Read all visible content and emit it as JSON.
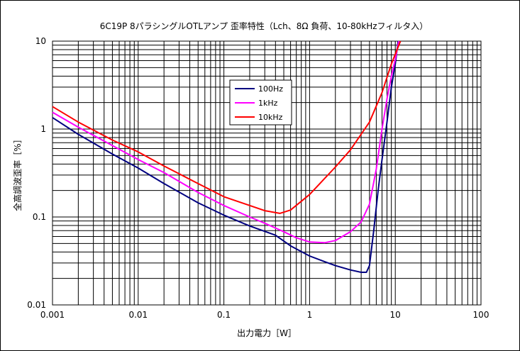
{
  "chart_data": {
    "type": "line",
    "title": "6C19P 8パラシングルOTLアンプ 歪率特性（Lch、8Ω 負荷、10-80kHzフィルタ入）",
    "xlabel": "出力電力［W］",
    "ylabel": "全高調波歪率［%］",
    "x_scale": "log",
    "y_scale": "log",
    "xlim": [
      0.001,
      100
    ],
    "ylim": [
      0.01,
      10
    ],
    "grid": true,
    "legend_position": "upper-middle",
    "x_tick_labels": [
      "0.001",
      "0.01",
      "0.1",
      "1",
      "10",
      "100"
    ],
    "y_tick_labels": [
      "10",
      "1",
      "0.1",
      "0.01"
    ],
    "series": [
      {
        "name": "100Hz",
        "color": "#000080",
        "points": [
          [
            0.001,
            1.35
          ],
          [
            0.002,
            0.87
          ],
          [
            0.005,
            0.52
          ],
          [
            0.01,
            0.36
          ],
          [
            0.02,
            0.24
          ],
          [
            0.05,
            0.145
          ],
          [
            0.1,
            0.105
          ],
          [
            0.2,
            0.079
          ],
          [
            0.4,
            0.062
          ],
          [
            0.6,
            0.047
          ],
          [
            1.0,
            0.036
          ],
          [
            1.5,
            0.031
          ],
          [
            2.0,
            0.028
          ],
          [
            3.0,
            0.025
          ],
          [
            4.0,
            0.0235
          ],
          [
            4.6,
            0.0235
          ],
          [
            5.0,
            0.028
          ],
          [
            5.6,
            0.07
          ],
          [
            6.3,
            0.2
          ],
          [
            7.0,
            0.45
          ],
          [
            8.0,
            1.2
          ],
          [
            9.0,
            3.0
          ],
          [
            10.0,
            5.5
          ],
          [
            10.8,
            10.0
          ]
        ]
      },
      {
        "name": "1kHz",
        "color": "#ff00ff",
        "points": [
          [
            0.001,
            1.55
          ],
          [
            0.002,
            1.05
          ],
          [
            0.005,
            0.65
          ],
          [
            0.01,
            0.45
          ],
          [
            0.02,
            0.32
          ],
          [
            0.05,
            0.19
          ],
          [
            0.1,
            0.135
          ],
          [
            0.2,
            0.1
          ],
          [
            0.3,
            0.085
          ],
          [
            0.5,
            0.068
          ],
          [
            0.7,
            0.058
          ],
          [
            1.0,
            0.052
          ],
          [
            1.5,
            0.051
          ],
          [
            2.0,
            0.054
          ],
          [
            3.0,
            0.068
          ],
          [
            4.0,
            0.088
          ],
          [
            5.0,
            0.14
          ],
          [
            6.0,
            0.35
          ],
          [
            7.0,
            1.0
          ],
          [
            8.0,
            2.2
          ],
          [
            9.0,
            4.0
          ],
          [
            10.0,
            6.2
          ],
          [
            11.0,
            10.0
          ]
        ]
      },
      {
        "name": "10kHz",
        "color": "#ff0000",
        "points": [
          [
            0.001,
            1.8
          ],
          [
            0.002,
            1.2
          ],
          [
            0.005,
            0.75
          ],
          [
            0.01,
            0.55
          ],
          [
            0.02,
            0.38
          ],
          [
            0.05,
            0.24
          ],
          [
            0.1,
            0.17
          ],
          [
            0.2,
            0.135
          ],
          [
            0.3,
            0.118
          ],
          [
            0.45,
            0.11
          ],
          [
            0.6,
            0.12
          ],
          [
            1.0,
            0.18
          ],
          [
            2.0,
            0.37
          ],
          [
            3.0,
            0.58
          ],
          [
            5.0,
            1.2
          ],
          [
            7.0,
            2.6
          ],
          [
            9.0,
            5.5
          ],
          [
            11.5,
            10.0
          ]
        ]
      }
    ]
  }
}
